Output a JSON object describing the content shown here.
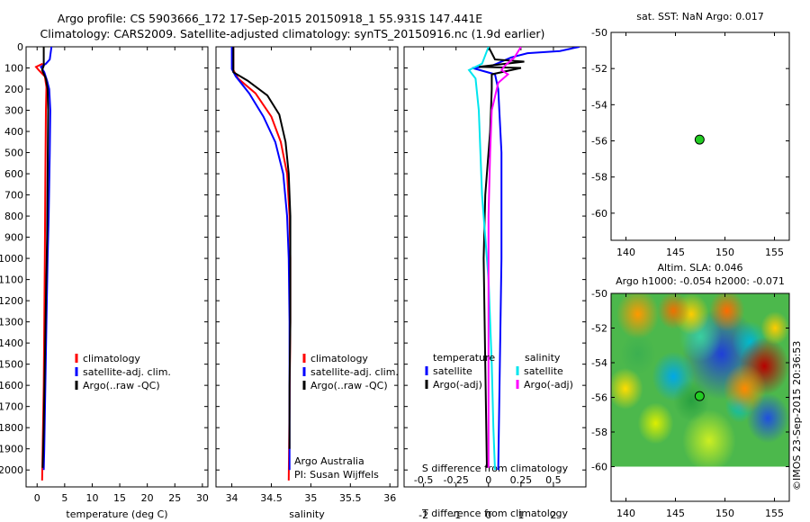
{
  "title_line1": "Argo profile: CS 5903666_172 17-Sep-2015 20150918_1 55.931S 147.441E",
  "title_line2": "Climatology: CARS2009. Satellite-adjusted climatology: synTS_20150916.nc (1.9d earlier)",
  "watermark": "©IMOS 23-Sep-2015 20:36:53",
  "colors": {
    "climatology": "#ff0000",
    "satellite": "#0000ff",
    "argo": "#000000",
    "sat_salinity": "#00e5ee",
    "argo_salinity": "#ff00ff",
    "float_dot": "#22cc22"
  },
  "chart_data": [
    {
      "id": "temperature",
      "type": "line",
      "xlabel": "temperature (deg C)",
      "xlim": [
        -2,
        31
      ],
      "xticks": [
        0,
        5,
        10,
        15,
        20,
        25,
        30
      ],
      "ylim": [
        0,
        2080
      ],
      "yticks": [
        0,
        100,
        200,
        300,
        400,
        500,
        600,
        700,
        800,
        900,
        1000,
        1100,
        1200,
        1300,
        1400,
        1500,
        1600,
        1700,
        1800,
        1900,
        2000
      ],
      "legend": [
        "climatology",
        "satellite-adj. clim.",
        "Argo(..raw -QC)"
      ],
      "series": [
        {
          "name": "climatology",
          "color": "climatology",
          "points": [
            [
              1.0,
              80
            ],
            [
              -0.2,
              95
            ],
            [
              0.3,
              110
            ],
            [
              1.4,
              140
            ],
            [
              1.7,
              190
            ],
            [
              1.6,
              300
            ],
            [
              1.5,
              600
            ],
            [
              1.4,
              1000
            ],
            [
              1.3,
              1300
            ],
            [
              1.2,
              1600
            ],
            [
              1.0,
              1900
            ],
            [
              0.9,
              2050
            ]
          ]
        },
        {
          "name": "satellite-adj. clim.",
          "color": "satellite",
          "points": [
            [
              2.6,
              0
            ],
            [
              2.3,
              60
            ],
            [
              1.6,
              80
            ],
            [
              0.7,
              95
            ],
            [
              1.3,
              120
            ],
            [
              1.8,
              160
            ],
            [
              2.2,
              200
            ],
            [
              2.4,
              300
            ],
            [
              2.3,
              500
            ],
            [
              2.1,
              800
            ],
            [
              1.9,
              1000
            ],
            [
              1.7,
              1300
            ],
            [
              1.5,
              1600
            ],
            [
              1.3,
              1900
            ],
            [
              1.2,
              2000
            ]
          ]
        },
        {
          "name": "Argo(..raw -QC)",
          "color": "argo",
          "points": [
            [
              1.2,
              0
            ],
            [
              1.2,
              90
            ],
            [
              0.9,
              110
            ],
            [
              1.6,
              150
            ],
            [
              1.9,
              200
            ],
            [
              2.0,
              300
            ],
            [
              1.9,
              600
            ],
            [
              1.8,
              900
            ],
            [
              1.6,
              1200
            ],
            [
              1.4,
              1500
            ],
            [
              1.2,
              1800
            ],
            [
              1.0,
              1990
            ]
          ]
        }
      ]
    },
    {
      "id": "salinity",
      "type": "line",
      "xlabel": "salinity",
      "xlim": [
        33.8,
        36.1
      ],
      "xticks": [
        34,
        34.5,
        35,
        35.5,
        36
      ],
      "ylim": [
        0,
        2080
      ],
      "legend": [
        "climatology",
        "satellite-adj. clim.",
        "Argo(..raw -QC)"
      ],
      "annotation": [
        "Argo Australia",
        "PI: Susan Wijffels"
      ],
      "series": [
        {
          "name": "climatology",
          "color": "climatology",
          "points": [
            [
              34.02,
              0
            ],
            [
              34.02,
              110
            ],
            [
              34.08,
              150
            ],
            [
              34.3,
              220
            ],
            [
              34.5,
              330
            ],
            [
              34.62,
              450
            ],
            [
              34.7,
              600
            ],
            [
              34.73,
              800
            ],
            [
              34.74,
              1000
            ],
            [
              34.74,
              1300
            ],
            [
              34.73,
              1700
            ],
            [
              34.72,
              2050
            ]
          ]
        },
        {
          "name": "satellite-adj. clim.",
          "color": "satellite",
          "points": [
            [
              34.0,
              0
            ],
            [
              34.0,
              105
            ],
            [
              34.05,
              140
            ],
            [
              34.22,
              220
            ],
            [
              34.4,
              330
            ],
            [
              34.55,
              450
            ],
            [
              34.65,
              600
            ],
            [
              34.7,
              800
            ],
            [
              34.72,
              1000
            ],
            [
              34.73,
              1300
            ],
            [
              34.73,
              1700
            ],
            [
              34.73,
              2000
            ]
          ]
        },
        {
          "name": "Argo(..raw -QC)",
          "color": "argo",
          "points": [
            [
              34.02,
              0
            ],
            [
              34.02,
              120
            ],
            [
              34.2,
              160
            ],
            [
              34.45,
              230
            ],
            [
              34.6,
              320
            ],
            [
              34.68,
              450
            ],
            [
              34.72,
              600
            ],
            [
              34.74,
              800
            ],
            [
              34.74,
              1000
            ],
            [
              34.74,
              1300
            ],
            [
              34.73,
              1600
            ],
            [
              34.73,
              1900
            ]
          ]
        }
      ]
    },
    {
      "id": "differences",
      "type": "line",
      "xlabel": "T difference from climatology",
      "xlabel_top": "S difference from climatology",
      "xlim": [
        -2.6,
        3.0
      ],
      "xticks": [
        -2,
        -1,
        0,
        1,
        2
      ],
      "xticks_s": [
        -0.5,
        -0.25,
        0,
        0.25,
        0.5
      ],
      "xticks_s_pos": [
        -2,
        -1,
        0,
        1,
        2
      ],
      "ylim": [
        0,
        2080
      ],
      "legend_headers": [
        "temperature",
        "salinity"
      ],
      "legend": [
        "satellite",
        "Argo(-adj)",
        "satellite",
        "Argo(-adj)"
      ],
      "series": [
        {
          "name": "T satellite",
          "color": "satellite",
          "points": [
            [
              2.8,
              0
            ],
            [
              2.2,
              20
            ],
            [
              1.2,
              30
            ],
            [
              0.7,
              50
            ],
            [
              0.1,
              90
            ],
            [
              -0.5,
              100
            ],
            [
              0.2,
              130
            ],
            [
              0.3,
              200
            ],
            [
              0.4,
              500
            ],
            [
              0.4,
              1000
            ],
            [
              0.35,
              1500
            ],
            [
              0.3,
              2000
            ]
          ]
        },
        {
          "name": "T Argo(-adj)",
          "color": "argo",
          "points": [
            [
              0.0,
              0
            ],
            [
              0.2,
              60
            ],
            [
              1.1,
              70
            ],
            [
              -0.3,
              95
            ],
            [
              1.0,
              100
            ],
            [
              0.1,
              130
            ],
            [
              0.1,
              200
            ],
            [
              0.05,
              400
            ],
            [
              -0.1,
              700
            ],
            [
              -0.15,
              1000
            ],
            [
              -0.1,
              1500
            ],
            [
              -0.05,
              1990
            ]
          ]
        },
        {
          "name": "S satellite",
          "color": "sat_salinity",
          "points": [
            [
              0.0,
              0
            ],
            [
              -0.2,
              80
            ],
            [
              -0.6,
              110
            ],
            [
              -0.4,
              150
            ],
            [
              -0.3,
              300
            ],
            [
              -0.2,
              700
            ],
            [
              0.0,
              1100
            ],
            [
              0.1,
              1500
            ],
            [
              0.15,
              1800
            ],
            [
              0.2,
              2000
            ]
          ]
        },
        {
          "name": "S Argo(-adj)",
          "color": "argo_salinity",
          "points": [
            [
              1.0,
              0
            ],
            [
              0.8,
              50
            ],
            [
              0.5,
              90
            ],
            [
              0.4,
              110
            ],
            [
              0.6,
              130
            ],
            [
              0.3,
              170
            ],
            [
              0.1,
              300
            ],
            [
              0.05,
              500
            ],
            [
              0.0,
              800
            ],
            [
              0.0,
              1200
            ],
            [
              0.0,
              1600
            ],
            [
              0.0,
              1990
            ]
          ]
        }
      ]
    },
    {
      "id": "sst_map",
      "type": "scatter",
      "title": "sat. SST: NaN Argo: 0.017",
      "xlim": [
        138.5,
        156.5
      ],
      "xticks": [
        140,
        145,
        150,
        155
      ],
      "ylim": [
        -61.5,
        -50
      ],
      "yticks": [
        -50,
        -52,
        -54,
        -56,
        -58,
        -60
      ],
      "points": [
        [
          147.44,
          -55.93
        ]
      ]
    },
    {
      "id": "sla_map",
      "type": "heatmap",
      "title_line1": "Altim. SLA: 0.046",
      "title_line2": "Argo h1000: -0.054 h2000: -0.071",
      "xlim": [
        138.5,
        156.5
      ],
      "xticks": [
        140,
        145,
        150,
        155
      ],
      "ylim": [
        -62,
        -50
      ],
      "yticks": [
        -50,
        -52,
        -54,
        -56,
        -58,
        -60
      ],
      "data_lat_range": [
        -60,
        -50
      ],
      "points": [
        [
          147.44,
          -55.93
        ]
      ]
    }
  ]
}
